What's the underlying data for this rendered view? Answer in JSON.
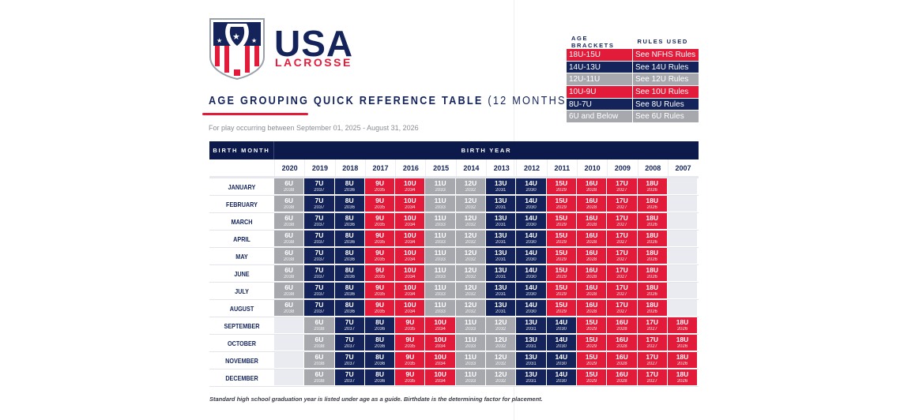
{
  "logo": {
    "word": "USA",
    "sub": "LACROSSE"
  },
  "title": "AGE GROUPING QUICK REFERENCE TABLE",
  "title_suffix": "(12 MONTHS)",
  "period": "For play occurring between September 01, 2025 - August 31, 2026",
  "colors": {
    "navy": "#14245a",
    "red": "#e31b3b",
    "gray": "#a6a8ae",
    "empty": "#e9ebf0"
  },
  "brackets": {
    "headers": [
      "AGE BRACKETS",
      "RULES USED"
    ],
    "rows": [
      {
        "bracket": "18U-15U",
        "rules": "See NFHS Rules",
        "color": "red"
      },
      {
        "bracket": "14U-13U",
        "rules": "See 14U Rules",
        "color": "navy"
      },
      {
        "bracket": "12U-11U",
        "rules": "See 12U Rules",
        "color": "gray"
      },
      {
        "bracket": "10U-9U",
        "rules": "See 10U Rules",
        "color": "red"
      },
      {
        "bracket": "8U-7U",
        "rules": "See 8U Rules",
        "color": "navy"
      },
      {
        "bracket": "6U and Below",
        "rules": "See 6U Rules",
        "color": "gray"
      }
    ]
  },
  "table": {
    "month_header": "BIRTH MONTH",
    "year_header": "BIRTH YEAR",
    "years": [
      "2020",
      "2019",
      "2018",
      "2017",
      "2016",
      "2015",
      "2014",
      "2013",
      "2012",
      "2011",
      "2010",
      "2009",
      "2008",
      "2007"
    ],
    "age_colors": {
      "6U": "gray",
      "7U": "navy",
      "8U": "navy",
      "9U": "red",
      "10U": "red",
      "11U": "gray",
      "12U": "gray",
      "13U": "navy",
      "14U": "navy",
      "15U": "red",
      "16U": "red",
      "17U": "red",
      "18U": "red"
    },
    "ages": [
      [
        "6U",
        "2038"
      ],
      [
        "7U",
        "2037"
      ],
      [
        "8U",
        "2036"
      ],
      [
        "9U",
        "2035"
      ],
      [
        "10U",
        "2034"
      ],
      [
        "11U",
        "2033"
      ],
      [
        "12U",
        "2032"
      ],
      [
        "13U",
        "2031"
      ],
      [
        "14U",
        "2030"
      ],
      [
        "15U",
        "2029"
      ],
      [
        "16U",
        "2028"
      ],
      [
        "17U",
        "2027"
      ],
      [
        "18U",
        "2026"
      ]
    ],
    "rows": [
      {
        "month": "JANUARY",
        "offset": 0
      },
      {
        "month": "FEBRUARY",
        "offset": 0
      },
      {
        "month": "MARCH",
        "offset": 0
      },
      {
        "month": "APRIL",
        "offset": 0
      },
      {
        "month": "MAY",
        "offset": 0
      },
      {
        "month": "JUNE",
        "offset": 0
      },
      {
        "month": "JULY",
        "offset": 0
      },
      {
        "month": "AUGUST",
        "offset": 0
      },
      {
        "month": "SEPTEMBER",
        "offset": 1
      },
      {
        "month": "OCTOBER",
        "offset": 1
      },
      {
        "month": "NOVEMBER",
        "offset": 1
      },
      {
        "month": "DECEMBER",
        "offset": 1
      }
    ]
  },
  "footnote": "Standard high school graduation year is listed under age as a guide. Birthdate is the determining factor for placement."
}
